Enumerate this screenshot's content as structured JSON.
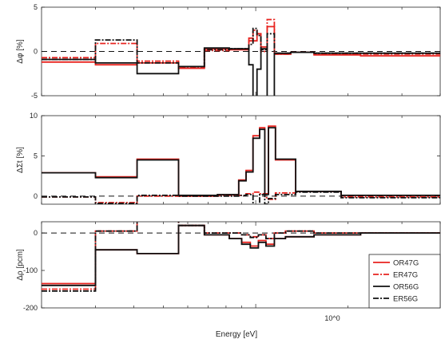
{
  "figure": {
    "xlabel": "Energy  [eV]",
    "x_tick_label": "10^0"
  },
  "chart_data": [
    {
      "type": "line",
      "panel": "top",
      "ylabel": "Δφ [%]",
      "ylim": [
        -5,
        5
      ],
      "yticks": [
        -5,
        0,
        5
      ],
      "x_scale": "log",
      "xlim": [
        0.2,
        4.0
      ],
      "reference_line": 0,
      "series": [
        {
          "name": "OR47G",
          "color": "#e8231f",
          "style": "solid",
          "x": [
            0.2,
            0.3,
            0.3,
            0.41,
            0.41,
            0.56,
            0.56,
            0.68,
            0.68,
            0.82,
            0.82,
            0.95,
            0.95,
            0.98,
            0.98,
            1.01,
            1.01,
            1.04,
            1.04,
            1.09,
            1.09,
            1.15,
            1.15,
            1.3,
            1.3,
            1.55,
            1.55,
            2.2,
            2.2,
            4.0
          ],
          "y": [
            -1.2,
            -1.2,
            -1.5,
            -1.5,
            -1.3,
            -1.3,
            -1.9,
            -1.9,
            0.3,
            0.3,
            0.2,
            0.2,
            1.5,
            1.5,
            1.2,
            1.2,
            2.0,
            2.0,
            0.5,
            0.5,
            2.8,
            2.8,
            -0.3,
            -0.3,
            -0.1,
            -0.1,
            -0.4,
            -0.4,
            -0.5,
            -0.5
          ]
        },
        {
          "name": "ER47G",
          "color": "#e8231f",
          "style": "dashdot",
          "x": [
            0.2,
            0.3,
            0.3,
            0.41,
            0.41,
            0.56,
            0.56,
            0.68,
            0.68,
            0.82,
            0.82,
            0.95,
            0.95,
            0.98,
            0.98,
            1.01,
            1.01,
            1.04,
            1.04,
            1.09,
            1.09,
            1.15,
            1.15,
            1.3,
            1.3,
            1.55,
            1.55,
            2.2,
            2.2,
            4.0
          ],
          "y": [
            -0.7,
            -0.7,
            0.9,
            0.9,
            -1.1,
            -1.1,
            -1.8,
            -1.8,
            0.1,
            0.1,
            0.3,
            0.3,
            1.2,
            1.2,
            2.4,
            2.4,
            2.0,
            2.0,
            0.0,
            0.0,
            3.6,
            3.6,
            -0.3,
            -0.3,
            -0.1,
            -0.1,
            -0.3,
            -0.3,
            -0.3,
            -0.3
          ]
        },
        {
          "name": "OR56G",
          "color": "#111111",
          "style": "solid",
          "x": [
            0.2,
            0.3,
            0.3,
            0.41,
            0.41,
            0.56,
            0.56,
            0.68,
            0.68,
            0.82,
            0.82,
            0.95,
            0.95,
            0.98,
            0.98,
            1.01,
            1.01,
            1.04,
            1.04,
            1.09,
            1.09,
            1.15,
            1.15,
            1.3,
            1.3,
            1.55,
            1.55,
            2.2,
            2.2,
            4.0
          ],
          "y": [
            -0.9,
            -0.9,
            -1.3,
            -1.3,
            -2.5,
            -2.5,
            -1.7,
            -1.7,
            0.4,
            0.4,
            0.3,
            0.3,
            -1.5,
            -1.5,
            -5.3,
            -5.3,
            -2.0,
            -2.0,
            0.3,
            0.3,
            -5.3,
            -5.3,
            -0.2,
            -0.2,
            -0.1,
            -0.1,
            -0.2,
            -0.2,
            -0.2,
            -0.2
          ]
        },
        {
          "name": "ER56G",
          "color": "#111111",
          "style": "dashdot",
          "x": [
            0.2,
            0.3,
            0.3,
            0.41,
            0.41,
            0.56,
            0.56,
            0.68,
            0.68,
            0.82,
            0.82,
            0.95,
            0.95,
            0.98,
            0.98,
            1.01,
            1.01,
            1.04,
            1.04,
            1.09,
            1.09,
            1.15,
            1.15,
            1.3,
            1.3,
            1.55,
            1.55,
            2.2,
            2.2,
            4.0
          ],
          "y": [
            -0.9,
            -0.9,
            1.3,
            1.3,
            -1.3,
            -1.3,
            -1.7,
            -1.7,
            0.2,
            0.2,
            0.3,
            0.3,
            0.8,
            0.8,
            2.6,
            2.6,
            1.8,
            1.8,
            0.2,
            0.2,
            2.0,
            2.0,
            -0.2,
            -0.2,
            -0.1,
            -0.1,
            -0.2,
            -0.2,
            -0.2,
            -0.2
          ]
        }
      ]
    },
    {
      "type": "line",
      "panel": "middle",
      "ylabel": "ΔΣt [%]",
      "ylim": [
        -1,
        10
      ],
      "yticks": [
        0,
        5,
        10
      ],
      "x_scale": "log",
      "xlim": [
        0.2,
        4.0
      ],
      "reference_line": 0,
      "series": [
        {
          "name": "OR47G",
          "color": "#e8231f",
          "style": "solid",
          "x": [
            0.2,
            0.3,
            0.3,
            0.41,
            0.41,
            0.56,
            0.56,
            0.75,
            0.75,
            0.88,
            0.88,
            0.93,
            0.93,
            0.98,
            0.98,
            1.03,
            1.03,
            1.07,
            1.07,
            1.1,
            1.1,
            1.16,
            1.16,
            1.35,
            1.35,
            1.9,
            1.9,
            4.0
          ],
          "y": [
            2.9,
            2.9,
            2.4,
            2.4,
            4.6,
            4.6,
            0.0,
            0.0,
            0.2,
            0.2,
            2.0,
            2.0,
            3.2,
            3.2,
            7.5,
            7.5,
            8.5,
            8.5,
            0.3,
            0.3,
            8.7,
            8.7,
            4.5,
            4.5,
            0.6,
            0.6,
            0.1,
            0.1
          ]
        },
        {
          "name": "ER47G",
          "color": "#e8231f",
          "style": "dashdot",
          "x": [
            0.2,
            0.3,
            0.3,
            0.41,
            0.41,
            0.56,
            0.56,
            0.75,
            0.75,
            0.88,
            0.88,
            0.93,
            0.93,
            0.98,
            0.98,
            1.03,
            1.03,
            1.07,
            1.07,
            1.1,
            1.1,
            1.16,
            1.16,
            1.35,
            1.35,
            1.9,
            1.9,
            4.0
          ],
          "y": [
            -0.1,
            -0.1,
            -0.8,
            -0.8,
            0.0,
            0.0,
            0.0,
            0.0,
            0.1,
            0.1,
            0.1,
            0.1,
            0.3,
            0.3,
            0.5,
            0.5,
            0.3,
            0.3,
            -0.2,
            -0.2,
            -0.4,
            -0.4,
            0.4,
            0.4,
            0.6,
            0.6,
            -0.1,
            -0.1
          ]
        },
        {
          "name": "OR56G",
          "color": "#111111",
          "style": "solid",
          "x": [
            0.2,
            0.3,
            0.3,
            0.41,
            0.41,
            0.56,
            0.56,
            0.75,
            0.75,
            0.88,
            0.88,
            0.93,
            0.93,
            0.98,
            0.98,
            1.03,
            1.03,
            1.07,
            1.07,
            1.1,
            1.1,
            1.16,
            1.16,
            1.35,
            1.35,
            1.9,
            1.9,
            4.0
          ],
          "y": [
            2.9,
            2.9,
            2.3,
            2.3,
            4.5,
            4.5,
            0.1,
            0.1,
            0.2,
            0.2,
            1.9,
            1.9,
            3.0,
            3.0,
            7.2,
            7.2,
            8.3,
            8.3,
            0.2,
            0.2,
            8.5,
            8.5,
            4.6,
            4.6,
            0.6,
            0.6,
            0.1,
            0.1
          ]
        },
        {
          "name": "ER56G",
          "color": "#111111",
          "style": "dashdot",
          "x": [
            0.2,
            0.3,
            0.3,
            0.41,
            0.41,
            0.56,
            0.56,
            0.75,
            0.75,
            0.88,
            0.88,
            0.93,
            0.93,
            0.98,
            0.98,
            1.03,
            1.03,
            1.07,
            1.07,
            1.1,
            1.1,
            1.16,
            1.16,
            1.35,
            1.35,
            1.9,
            1.9,
            4.0
          ],
          "y": [
            -0.1,
            -0.1,
            -0.9,
            -0.9,
            0.1,
            0.1,
            0.0,
            0.0,
            0.0,
            0.0,
            0.1,
            0.1,
            0.2,
            0.2,
            -1.2,
            -1.2,
            0.2,
            0.2,
            -1.0,
            -1.0,
            -0.3,
            -0.3,
            0.2,
            0.2,
            0.5,
            0.5,
            -0.2,
            -0.2
          ]
        }
      ]
    },
    {
      "type": "line",
      "panel": "bottom",
      "ylabel": "Δρ [pcm]",
      "ylim": [
        -200,
        30
      ],
      "yticks": [
        -200,
        -100,
        0
      ],
      "x_scale": "log",
      "xlim": [
        0.2,
        4.0
      ],
      "reference_line": 0,
      "series": [
        {
          "name": "OR47G",
          "color": "#e8231f",
          "style": "solid",
          "x": [
            0.2,
            0.3,
            0.3,
            0.41,
            0.41,
            0.56,
            0.56,
            0.68,
            0.68,
            0.82,
            0.82,
            0.9,
            0.9,
            0.96,
            0.96,
            1.02,
            1.02,
            1.08,
            1.08,
            1.15,
            1.15,
            1.25,
            1.25,
            1.55,
            1.55,
            2.2,
            2.2,
            4.0
          ],
          "y": [
            -135,
            -135,
            -45,
            -45,
            -55,
            -55,
            20,
            20,
            -5,
            -5,
            -15,
            -15,
            -25,
            -25,
            -35,
            -35,
            -20,
            -20,
            -30,
            -30,
            -15,
            -15,
            -10,
            -10,
            -5,
            -5,
            0,
            0
          ]
        },
        {
          "name": "ER47G",
          "color": "#e8231f",
          "style": "dashdot",
          "x": [
            0.2,
            0.3,
            0.3,
            0.41,
            0.41,
            0.56,
            0.56,
            0.68,
            0.68,
            0.82,
            0.82,
            0.9,
            0.9,
            0.96,
            0.96,
            1.02,
            1.02,
            1.08,
            1.08,
            1.15,
            1.15,
            1.25,
            1.25,
            1.55,
            1.55,
            2.2,
            2.2,
            4.0
          ],
          "y": [
            -150,
            -150,
            5,
            5,
            40,
            40,
            20,
            20,
            0,
            0,
            0,
            0,
            -5,
            -5,
            -10,
            -10,
            -5,
            -5,
            -15,
            -15,
            0,
            0,
            5,
            5,
            0,
            0,
            0,
            0
          ]
        },
        {
          "name": "OR56G",
          "color": "#111111",
          "style": "solid",
          "x": [
            0.2,
            0.3,
            0.3,
            0.41,
            0.41,
            0.56,
            0.56,
            0.68,
            0.68,
            0.82,
            0.82,
            0.9,
            0.9,
            0.96,
            0.96,
            1.02,
            1.02,
            1.08,
            1.08,
            1.15,
            1.15,
            1.25,
            1.25,
            1.55,
            1.55,
            2.2,
            2.2,
            4.0
          ],
          "y": [
            -140,
            -140,
            -45,
            -45,
            -55,
            -55,
            20,
            20,
            -5,
            -5,
            -15,
            -15,
            -30,
            -30,
            -40,
            -40,
            -25,
            -25,
            -35,
            -35,
            -15,
            -15,
            -10,
            -10,
            -5,
            -5,
            0,
            0
          ]
        },
        {
          "name": "ER56G",
          "color": "#111111",
          "style": "dashdot",
          "x": [
            0.2,
            0.3,
            0.3,
            0.41,
            0.41,
            0.56,
            0.56,
            0.68,
            0.68,
            0.82,
            0.82,
            0.9,
            0.9,
            0.96,
            0.96,
            1.02,
            1.02,
            1.08,
            1.08,
            1.15,
            1.15,
            1.25,
            1.25,
            1.55,
            1.55,
            2.2,
            2.2,
            4.0
          ],
          "y": [
            -155,
            -155,
            5,
            5,
            42,
            42,
            20,
            20,
            0,
            0,
            0,
            0,
            -5,
            -5,
            -12,
            -12,
            -5,
            -5,
            -15,
            -15,
            0,
            0,
            5,
            5,
            0,
            0,
            0,
            0
          ]
        }
      ]
    }
  ],
  "legend": {
    "placement": "bottom-right",
    "entries": [
      "OR47G",
      "ER47G",
      "OR56G",
      "ER56G"
    ]
  }
}
